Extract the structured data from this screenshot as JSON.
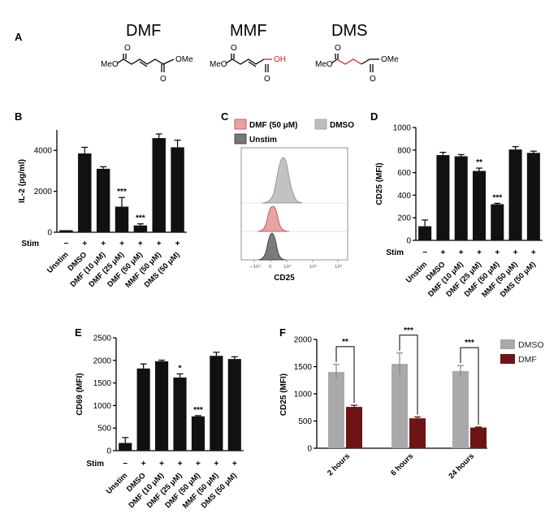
{
  "panel_labels": {
    "a": "A",
    "b": "B",
    "c": "C",
    "d": "D",
    "e": "E",
    "f": "F"
  },
  "compounds": [
    {
      "name": "DMF",
      "left_atom": "MeO",
      "right_atom": "OMe",
      "o_top": "O",
      "o_bottom": "O"
    },
    {
      "name": "MMF",
      "left_atom": "MeO",
      "right_atom": "OH",
      "o_top": "O",
      "o_bottom": "O"
    },
    {
      "name": "DMS",
      "left_atom": "MeO",
      "right_atom": "OMe",
      "o_top": "O",
      "o_bottom": "O"
    }
  ],
  "colors": {
    "bar": "#111111",
    "dmso": "#a9a9ab",
    "dmf": "#6e1414",
    "dmf_hist": "#e6a4a4",
    "dmso_hist": "#bdbdbd",
    "unstim_hist": "#777777",
    "accent_red": "#e02020"
  },
  "stim_label": "Stim",
  "chart_data": [
    {
      "id": "B",
      "type": "bar",
      "ylabel": "IL-2 (pg/ml)",
      "ylim": [
        0,
        5000
      ],
      "yticks": [
        "0",
        "2000",
        "4000"
      ],
      "categories": [
        "Unstim",
        "DMSO",
        "DMF (10 μM)",
        "DMF (25 μM)",
        "DMF (50 μM)",
        "MMF (50 μM)",
        "DMS (50 μM)"
      ],
      "values": [
        100,
        3850,
        3100,
        1250,
        330,
        4600,
        4150
      ],
      "errors": [
        0,
        300,
        100,
        450,
        80,
        200,
        350
      ],
      "stim": [
        "−",
        "+",
        "+",
        "+",
        "+",
        "+",
        "+"
      ],
      "significance": [
        "",
        "",
        "",
        "***",
        "***",
        "",
        ""
      ]
    },
    {
      "id": "C",
      "type": "histogram",
      "xlabel": "CD25",
      "xticks": [
        "−10³",
        "0",
        "10³",
        "10⁴",
        "10⁵"
      ],
      "legend": [
        "DMF (50 μM)",
        "DMSO",
        "Unstim"
      ]
    },
    {
      "id": "D",
      "type": "bar",
      "ylabel": "CD25 (MFI)",
      "ylim": [
        0,
        1000
      ],
      "yticks": [
        "0",
        "200",
        "400",
        "600",
        "800",
        "1000"
      ],
      "categories": [
        "Unstim",
        "DMSO",
        "DMF (10 μM)",
        "DMF (25 μM)",
        "DMF (50 μM)",
        "MMF (50 μM)",
        "DMS (50 μM)"
      ],
      "values": [
        125,
        755,
        745,
        615,
        320,
        805,
        775
      ],
      "errors": [
        55,
        25,
        15,
        25,
        8,
        25,
        15
      ],
      "stim": [
        "−",
        "+",
        "+",
        "+",
        "+",
        "+",
        "+"
      ],
      "significance": [
        "",
        "",
        "",
        "**",
        "***",
        "",
        ""
      ]
    },
    {
      "id": "E",
      "type": "bar",
      "ylabel": "CD69 (MFI)",
      "ylim": [
        0,
        2500
      ],
      "yticks": [
        "0",
        "500",
        "1000",
        "1500",
        "2000",
        "2500"
      ],
      "categories": [
        "Unstim",
        "DMSO",
        "DMF (10 μM)",
        "DMF (25 μM)",
        "DMF (50 μM)",
        "MMF (50 μM)",
        "DMS (50 μM)"
      ],
      "values": [
        170,
        1820,
        1980,
        1620,
        760,
        2100,
        2030
      ],
      "errors": [
        120,
        100,
        25,
        80,
        15,
        80,
        50
      ],
      "stim": [
        "−",
        "+",
        "+",
        "+",
        "+",
        "+",
        "+"
      ],
      "significance": [
        "",
        "",
        "",
        "*",
        "***",
        "",
        ""
      ]
    },
    {
      "id": "F",
      "type": "bar",
      "ylabel": "CD25 (MFI)",
      "ylim": [
        0,
        2000
      ],
      "yticks": [
        "0",
        "500",
        "1000",
        "1500",
        "2000"
      ],
      "categories": [
        "2 hours",
        "6 hours",
        "24 hours"
      ],
      "series": [
        {
          "name": "DMSO",
          "values": [
            1400,
            1550,
            1420
          ],
          "errors": [
            140,
            200,
            100
          ]
        },
        {
          "name": "DMF",
          "values": [
            760,
            550,
            380
          ],
          "errors": [
            30,
            25,
            10
          ]
        }
      ],
      "significance": [
        "**",
        "***",
        "***"
      ],
      "legend": "top-right"
    }
  ]
}
